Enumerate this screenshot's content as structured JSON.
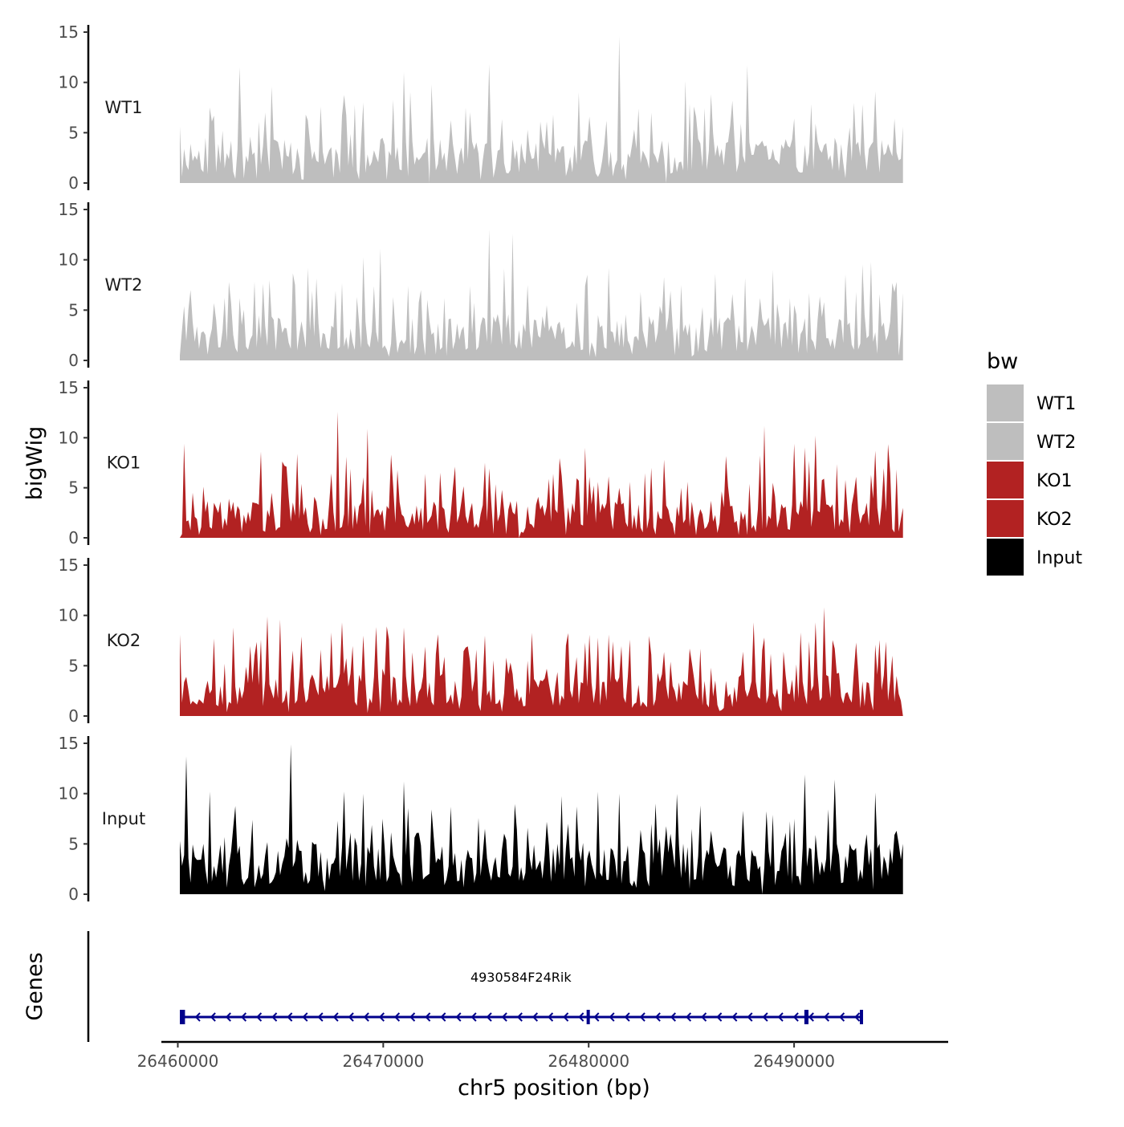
{
  "chart_data": {
    "type": "area",
    "title": "",
    "ylabel": "bigWig",
    "xlabel": "chr5 position (bp)",
    "xlim": [
      26459200,
      26497500
    ],
    "x_ticks": [
      26460000,
      26470000,
      26480000,
      26490000
    ],
    "x_tick_labels": [
      "26460000",
      "26470000",
      "26480000",
      "26490000"
    ],
    "ylim": [
      0,
      15
    ],
    "y_ticks": [
      0,
      5,
      10,
      15
    ],
    "y_tick_labels": [
      "0",
      "5",
      "10",
      "15"
    ],
    "data_x_range": [
      26460100,
      26495300
    ],
    "tracks": [
      {
        "name": "WT1",
        "color": "#BEBEBE",
        "peaks": [
          [
            26460100,
            5.6
          ],
          [
            26460400,
            1.8
          ],
          [
            26460600,
            3.9
          ],
          [
            26461300,
            4.5
          ],
          [
            26461800,
            6.7
          ],
          [
            26462200,
            5.2
          ],
          [
            26462600,
            4.2
          ],
          [
            26463000,
            11.5
          ],
          [
            26463500,
            4.6
          ],
          [
            26463900,
            6.1
          ],
          [
            26464300,
            7.0
          ],
          [
            26464600,
            9.6
          ],
          [
            26465200,
            4.3
          ],
          [
            26465700,
            1.5
          ],
          [
            26466200,
            6.8
          ],
          [
            26467000,
            7.6
          ],
          [
            26468000,
            6.7
          ],
          [
            26468500,
            1.5
          ],
          [
            26469000,
            8.0
          ],
          [
            26470000,
            4.5
          ],
          [
            26471000,
            11.0
          ],
          [
            26472200,
            0.0
          ],
          [
            26472400,
            9.8
          ],
          [
            26473200,
            3.5
          ],
          [
            26474000,
            7.5
          ],
          [
            26475200,
            11.8
          ],
          [
            26475600,
            3.2
          ],
          [
            26476200,
            1.3
          ],
          [
            26477000,
            5.3
          ],
          [
            26478300,
            6.8
          ],
          [
            26479300,
            3.8
          ],
          [
            26480000,
            6.6
          ],
          [
            26481500,
            14.6
          ],
          [
            26482300,
            3.4
          ],
          [
            26483000,
            7.0
          ],
          [
            26483800,
            0.0
          ],
          [
            26484200,
            2.6
          ],
          [
            26485300,
            4.4
          ],
          [
            26486300,
            3.8
          ],
          [
            26487700,
            11.7
          ],
          [
            26488300,
            3.9
          ],
          [
            26489000,
            3.4
          ],
          [
            26490000,
            6.4
          ],
          [
            26491000,
            5.9
          ],
          [
            26492000,
            4.5
          ],
          [
            26493000,
            3.8
          ],
          [
            26494000,
            9.1
          ],
          [
            26494500,
            3.0
          ],
          [
            26495300,
            5.6
          ]
        ],
        "seed": 11,
        "base": 3.8
      },
      {
        "name": "WT2",
        "color": "#BEBEBE",
        "peaks": [
          [
            26460100,
            0.5
          ],
          [
            26460300,
            5.4
          ],
          [
            26460600,
            7.0
          ],
          [
            26461200,
            2.9
          ],
          [
            26461800,
            5.7
          ],
          [
            26462500,
            7.8
          ],
          [
            26463000,
            6.2
          ],
          [
            26463800,
            1.3
          ],
          [
            26464500,
            8.0
          ],
          [
            26465000,
            4.1
          ],
          [
            26465700,
            7.5
          ],
          [
            26466500,
            6.9
          ],
          [
            26467200,
            2.6
          ],
          [
            26468000,
            7.7
          ],
          [
            26468700,
            6.3
          ],
          [
            26469500,
            7.4
          ],
          [
            26469900,
            11.1
          ],
          [
            26470500,
            6.3
          ],
          [
            26471200,
            7.4
          ],
          [
            26472000,
            0.5
          ],
          [
            26472500,
            2.8
          ],
          [
            26473000,
            6.2
          ],
          [
            26474200,
            7.4
          ],
          [
            26474800,
            4.3
          ],
          [
            26475200,
            13.0
          ],
          [
            26475600,
            4.6
          ],
          [
            26476300,
            12.6
          ],
          [
            26477000,
            7.5
          ],
          [
            26478000,
            5.5
          ],
          [
            26479000,
            1.3
          ],
          [
            26479800,
            7.4
          ],
          [
            26480500,
            4.5
          ],
          [
            26481000,
            9.2
          ],
          [
            26482500,
            6.8
          ],
          [
            26483500,
            5.4
          ],
          [
            26484500,
            7.5
          ],
          [
            26485500,
            5.3
          ],
          [
            26486200,
            8.6
          ],
          [
            26487000,
            6.6
          ],
          [
            26487800,
            2.1
          ],
          [
            26488300,
            6.2
          ],
          [
            26489000,
            9.0
          ],
          [
            26490000,
            5.5
          ],
          [
            26490700,
            6.7
          ],
          [
            26491500,
            5.8
          ],
          [
            26492000,
            1.1
          ],
          [
            26493000,
            6.8
          ],
          [
            26493700,
            9.8
          ],
          [
            26494200,
            6.6
          ],
          [
            26495000,
            7.8
          ],
          [
            26495300,
            6.7
          ]
        ],
        "seed": 23,
        "base": 4.0
      },
      {
        "name": "KO1",
        "color": "#B22222",
        "peaks": [
          [
            26460100,
            0.0
          ],
          [
            26460300,
            9.4
          ],
          [
            26460700,
            4.5
          ],
          [
            26461000,
            0.3
          ],
          [
            26461800,
            3.5
          ],
          [
            26462500,
            3.9
          ],
          [
            26463000,
            2.8
          ],
          [
            26464000,
            8.6
          ],
          [
            26464600,
            4.5
          ],
          [
            26465300,
            7.1
          ],
          [
            26466000,
            5.4
          ],
          [
            26466600,
            4.1
          ],
          [
            26467400,
            3.4
          ],
          [
            26467800,
            12.6
          ],
          [
            26468400,
            6.9
          ],
          [
            26469200,
            10.9
          ],
          [
            26469900,
            2.2
          ],
          [
            26470500,
            5.2
          ],
          [
            26471000,
            2.1
          ],
          [
            26472000,
            6.4
          ],
          [
            26472800,
            6.5
          ],
          [
            26473400,
            5.0
          ],
          [
            26474000,
            2.2
          ],
          [
            26475000,
            7.5
          ],
          [
            26475800,
            4.8
          ],
          [
            26476500,
            3.7
          ],
          [
            26476600,
            0.0
          ],
          [
            26476800,
            0.5
          ],
          [
            26477500,
            4.1
          ],
          [
            26478300,
            6.4
          ],
          [
            26478900,
            0.3
          ],
          [
            26479500,
            5.7
          ],
          [
            26479800,
            9.0
          ],
          [
            26480500,
            5.6
          ],
          [
            26481500,
            5.0
          ],
          [
            26482000,
            5.6
          ],
          [
            26483000,
            7.0
          ],
          [
            26484000,
            1.7
          ],
          [
            26484500,
            5.0
          ],
          [
            26485000,
            3.6
          ],
          [
            26486000,
            3.7
          ],
          [
            26487000,
            3.2
          ],
          [
            26487800,
            5.4
          ],
          [
            26488500,
            11.2
          ],
          [
            26489000,
            5.5
          ],
          [
            26490000,
            9.4
          ],
          [
            26491000,
            10.2
          ],
          [
            26491500,
            5.9
          ],
          [
            26492500,
            5.8
          ],
          [
            26493000,
            6.1
          ],
          [
            26494000,
            8.7
          ],
          [
            26494700,
            6.5
          ],
          [
            26495300,
            3.0
          ]
        ],
        "seed": 37,
        "base": 3.2
      },
      {
        "name": "KO2",
        "color": "#B22222",
        "peaks": [
          [
            26460100,
            8.1
          ],
          [
            26460400,
            3.9
          ],
          [
            26460700,
            1.5
          ],
          [
            26461300,
            2.6
          ],
          [
            26461800,
            7.7
          ],
          [
            26462300,
            5.2
          ],
          [
            26462700,
            8.8
          ],
          [
            26463300,
            4.9
          ],
          [
            26464000,
            7.6
          ],
          [
            26464400,
            9.9
          ],
          [
            26465000,
            9.6
          ],
          [
            26465600,
            6.5
          ],
          [
            26466000,
            7.9
          ],
          [
            26467000,
            6.6
          ],
          [
            26467500,
            8.3
          ],
          [
            26468000,
            9.3
          ],
          [
            26469000,
            8.0
          ],
          [
            26470000,
            4.7
          ],
          [
            26471000,
            8.8
          ],
          [
            26472000,
            6.9
          ],
          [
            26473000,
            5.9
          ],
          [
            26474000,
            6.8
          ],
          [
            26474500,
            6.6
          ],
          [
            26475000,
            8.0
          ],
          [
            26475500,
            1.2
          ],
          [
            26476000,
            5.8
          ],
          [
            26477000,
            5.5
          ],
          [
            26478000,
            4.7
          ],
          [
            26478900,
            7.0
          ],
          [
            26479800,
            7.3
          ],
          [
            26480500,
            7.8
          ],
          [
            26481000,
            8.1
          ],
          [
            26482000,
            7.6
          ],
          [
            26483000,
            6.1
          ],
          [
            26484000,
            5.4
          ],
          [
            26485000,
            5.3
          ],
          [
            26486000,
            4.8
          ],
          [
            26486500,
            0.6
          ],
          [
            26487500,
            6.4
          ],
          [
            26488000,
            9.3
          ],
          [
            26488500,
            7.8
          ],
          [
            26489500,
            6.4
          ],
          [
            26490300,
            8.3
          ],
          [
            26491000,
            9.3
          ],
          [
            26491500,
            10.8
          ],
          [
            26492000,
            6.7
          ],
          [
            26493000,
            7.3
          ],
          [
            26494000,
            7.1
          ],
          [
            26494500,
            7.4
          ],
          [
            26495300,
            0.0
          ]
        ],
        "seed": 53,
        "base": 3.8
      },
      {
        "name": "Input",
        "color": "#000000",
        "peaks": [
          [
            26460100,
            5.3
          ],
          [
            26460400,
            13.7
          ],
          [
            26460800,
            3.7
          ],
          [
            26461600,
            10.2
          ],
          [
            26462300,
            5.7
          ],
          [
            26463000,
            4.8
          ],
          [
            26463600,
            7.4
          ],
          [
            26464200,
            2.0
          ],
          [
            26465000,
            1.9
          ],
          [
            26465500,
            14.9
          ],
          [
            26466000,
            4.3
          ],
          [
            26466500,
            5.2
          ],
          [
            26467200,
            0.3
          ],
          [
            26467800,
            7.3
          ],
          [
            26468300,
            4.2
          ],
          [
            26469000,
            10.0
          ],
          [
            26470000,
            7.5
          ],
          [
            26471000,
            11.2
          ],
          [
            26471700,
            6.1
          ],
          [
            26472500,
            5.7
          ],
          [
            26473300,
            8.7
          ],
          [
            26474000,
            3.2
          ],
          [
            26475000,
            6.5
          ],
          [
            26476000,
            5.4
          ],
          [
            26477000,
            6.6
          ],
          [
            26478000,
            7.2
          ],
          [
            26479000,
            7.0
          ],
          [
            26479700,
            5.1
          ],
          [
            26480500,
            10.2
          ],
          [
            26481500,
            10.0
          ],
          [
            26482500,
            6.4
          ],
          [
            26483000,
            7.0
          ],
          [
            26484000,
            6.0
          ],
          [
            26485000,
            6.5
          ],
          [
            26486000,
            6.3
          ],
          [
            26487500,
            8.3
          ],
          [
            26488300,
            2.8
          ],
          [
            26488400,
            0.0
          ],
          [
            26489000,
            7.9
          ],
          [
            26490000,
            7.5
          ],
          [
            26490500,
            11.9
          ],
          [
            26491000,
            5.9
          ],
          [
            26492000,
            11.4
          ],
          [
            26493000,
            4.6
          ],
          [
            26494000,
            10.1
          ],
          [
            26494500,
            3.1
          ],
          [
            26495000,
            6.3
          ],
          [
            26495300,
            5.0
          ]
        ],
        "seed": 71,
        "base": 4.4
      }
    ],
    "legend": {
      "title": "bw",
      "position": "right",
      "entries": [
        {
          "label": "WT1",
          "color": "#BEBEBE"
        },
        {
          "label": "WT2",
          "color": "#BEBEBE"
        },
        {
          "label": "KO1",
          "color": "#B22222"
        },
        {
          "label": "KO2",
          "color": "#B22222"
        },
        {
          "label": "Input",
          "color": "#000000"
        }
      ]
    },
    "genes_track": {
      "label": "Genes",
      "color": "#00008B",
      "gene": {
        "name": "4930584F24Rik",
        "start": 26460100,
        "end": 26493300,
        "strand": "-",
        "exons": [
          [
            26460100,
            26460350
          ],
          [
            26479900,
            26480050
          ],
          [
            26490500,
            26490700
          ],
          [
            26493200,
            26493300
          ]
        ]
      }
    }
  }
}
